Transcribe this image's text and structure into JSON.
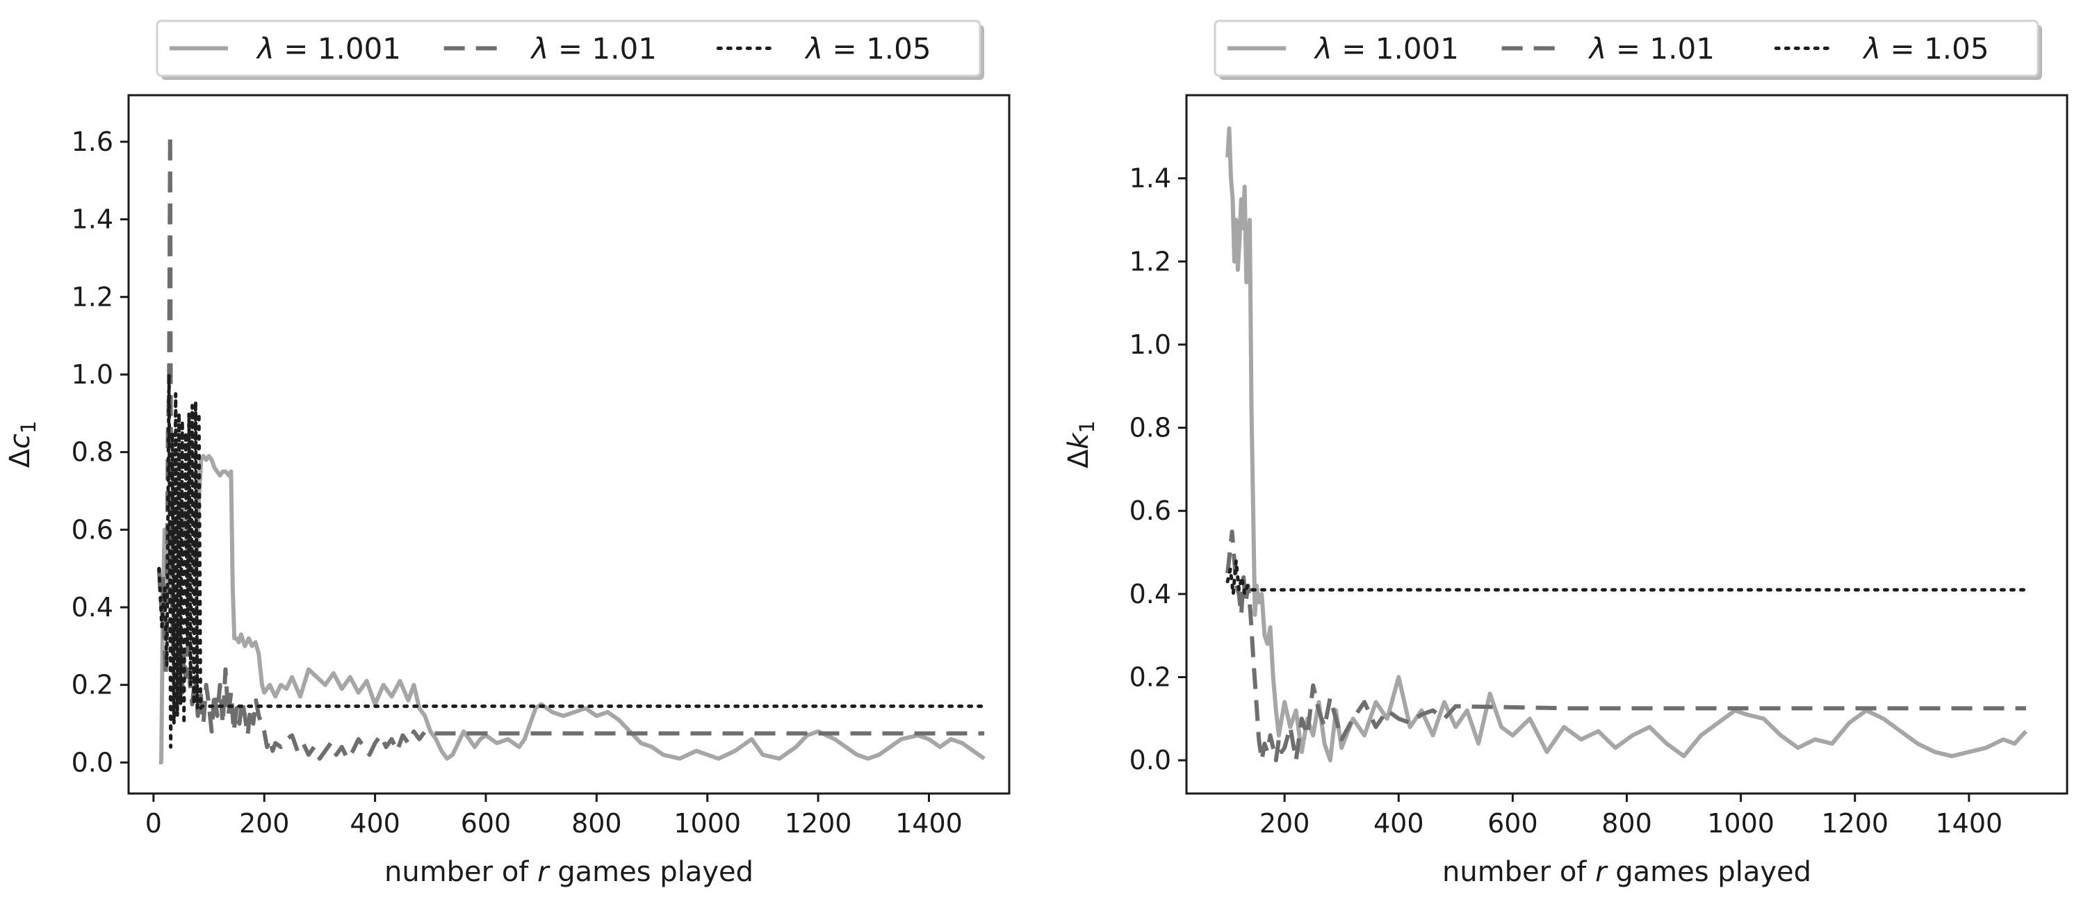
{
  "chart_data": [
    {
      "type": "line",
      "xlabel": "number of r games played",
      "xlabel_parts": {
        "pre": "number of ",
        "ital": "r",
        "post": " games played"
      },
      "ylabel_parts": {
        "delta": "Δ",
        "sym": "c",
        "sub": "1"
      },
      "xlim": [
        -45,
        1545
      ],
      "ylim": [
        -0.08,
        1.72
      ],
      "xticks": [
        0,
        200,
        400,
        600,
        800,
        1000,
        1200,
        1400
      ],
      "yticks": [
        0.0,
        0.2,
        0.4,
        0.6,
        0.8,
        1.0,
        1.2,
        1.4,
        1.6
      ],
      "legend": "top (above plot)",
      "grid": false,
      "series": [
        {
          "name": "λ = 1.001",
          "label_parts": {
            "sym": "λ",
            "val": "= 1.001"
          },
          "style": "solid",
          "color": "#a6a6a6",
          "x": [
            10,
            14,
            17,
            20,
            23,
            27,
            31,
            35,
            40,
            45,
            50,
            55,
            60,
            63,
            66,
            70,
            74,
            78,
            82,
            86,
            90,
            95,
            100,
            105,
            110,
            115,
            120,
            125,
            130,
            136,
            140,
            143,
            146,
            150,
            154,
            158,
            165,
            172,
            178,
            184,
            190,
            196,
            200,
            210,
            220,
            230,
            240,
            250,
            265,
            280,
            295,
            310,
            325,
            340,
            355,
            370,
            385,
            400,
            415,
            430,
            445,
            460,
            470,
            480,
            490,
            500,
            510,
            520,
            530,
            540,
            550,
            560,
            570,
            580,
            590,
            600,
            620,
            640,
            660,
            670,
            680,
            690,
            700,
            720,
            740,
            760,
            780,
            800,
            820,
            840,
            860,
            880,
            900,
            920,
            950,
            980,
            1000,
            1020,
            1050,
            1080,
            1100,
            1130,
            1160,
            1180,
            1200,
            1230,
            1250,
            1270,
            1290,
            1310,
            1330,
            1350,
            1380,
            1400,
            1420,
            1440,
            1460,
            1480,
            1500
          ],
          "y": [
            0.0,
            0.0,
            0.4,
            0.6,
            0.55,
            0.45,
            0.62,
            0.58,
            0.55,
            0.65,
            0.6,
            0.66,
            0.55,
            0.52,
            0.58,
            0.55,
            0.5,
            0.52,
            0.68,
            0.78,
            0.79,
            0.78,
            0.79,
            0.78,
            0.76,
            0.75,
            0.74,
            0.75,
            0.75,
            0.74,
            0.75,
            0.45,
            0.32,
            0.32,
            0.31,
            0.33,
            0.3,
            0.32,
            0.3,
            0.31,
            0.28,
            0.2,
            0.18,
            0.2,
            0.17,
            0.2,
            0.19,
            0.22,
            0.17,
            0.24,
            0.22,
            0.2,
            0.23,
            0.19,
            0.22,
            0.18,
            0.21,
            0.15,
            0.2,
            0.17,
            0.21,
            0.16,
            0.2,
            0.14,
            0.12,
            0.08,
            0.06,
            0.03,
            0.01,
            0.02,
            0.05,
            0.08,
            0.06,
            0.04,
            0.06,
            0.07,
            0.05,
            0.06,
            0.04,
            0.06,
            0.1,
            0.14,
            0.15,
            0.13,
            0.12,
            0.13,
            0.14,
            0.12,
            0.13,
            0.11,
            0.08,
            0.05,
            0.04,
            0.02,
            0.01,
            0.03,
            0.02,
            0.01,
            0.03,
            0.06,
            0.02,
            0.01,
            0.04,
            0.07,
            0.08,
            0.06,
            0.04,
            0.02,
            0.01,
            0.02,
            0.04,
            0.06,
            0.07,
            0.06,
            0.04,
            0.06,
            0.05,
            0.03,
            0.01
          ]
        },
        {
          "name": "λ = 1.01",
          "label_parts": {
            "sym": "λ",
            "val": "= 1.01"
          },
          "style": "dashed",
          "color": "#6e6e6e",
          "x": [
            10,
            13,
            16,
            18,
            20,
            22,
            24,
            26,
            28,
            30,
            31,
            33,
            35,
            37,
            40,
            43,
            46,
            49,
            52,
            55,
            58,
            62,
            66,
            70,
            75,
            80,
            85,
            90,
            95,
            100,
            105,
            110,
            115,
            120,
            125,
            130,
            135,
            140,
            145,
            150,
            155,
            160,
            165,
            170,
            175,
            180,
            185,
            190,
            195,
            200,
            205,
            210,
            215,
            220,
            230,
            240,
            250,
            260,
            270,
            280,
            290,
            300,
            310,
            320,
            330,
            340,
            350,
            360,
            370,
            380,
            390,
            400,
            410,
            420,
            430,
            440,
            450,
            460,
            470,
            480,
            490,
            500,
            700,
            900,
            1100,
            1300,
            1500
          ],
          "y": [
            0.5,
            0.42,
            0.38,
            0.48,
            0.3,
            0.22,
            0.35,
            0.85,
            0.95,
            1.62,
            0.9,
            0.5,
            0.28,
            0.36,
            0.3,
            0.38,
            0.25,
            0.3,
            0.18,
            0.28,
            0.22,
            0.3,
            0.2,
            0.15,
            0.22,
            0.12,
            0.18,
            0.1,
            0.2,
            0.15,
            0.08,
            0.18,
            0.12,
            0.2,
            0.1,
            0.24,
            0.12,
            0.18,
            0.08,
            0.14,
            0.1,
            0.16,
            0.12,
            0.07,
            0.14,
            0.1,
            0.16,
            0.12,
            0.1,
            0.08,
            0.04,
            0.06,
            0.03,
            0.05,
            0.04,
            0.06,
            0.07,
            0.03,
            0.05,
            0.02,
            0.04,
            0.01,
            0.03,
            0.05,
            0.02,
            0.04,
            0.01,
            0.03,
            0.06,
            0.04,
            0.02,
            0.05,
            0.07,
            0.04,
            0.06,
            0.03,
            0.07,
            0.05,
            0.08,
            0.06,
            0.08,
            0.075,
            0.075,
            0.075,
            0.075,
            0.075,
            0.075
          ]
        },
        {
          "name": "λ = 1.05",
          "label_parts": {
            "sym": "λ",
            "val": "= 1.05"
          },
          "style": "dotted",
          "color": "#1e1e1e",
          "x": [
            10,
            15,
            20,
            24,
            28,
            31,
            34,
            37,
            40,
            43,
            46,
            49,
            52,
            55,
            58,
            61,
            64,
            67,
            70,
            73,
            76,
            79,
            82,
            85,
            88,
            200,
            400,
            600,
            800,
            1000,
            1200,
            1400,
            1500
          ],
          "y": [
            0.5,
            0.35,
            0.45,
            0.25,
            1.0,
            0.04,
            0.85,
            0.1,
            0.95,
            0.12,
            0.9,
            0.15,
            0.88,
            0.1,
            0.85,
            0.3,
            0.9,
            0.2,
            0.92,
            0.15,
            0.93,
            0.14,
            0.9,
            0.14,
            0.145,
            0.145,
            0.145,
            0.145,
            0.145,
            0.145,
            0.145,
            0.145,
            0.145
          ]
        }
      ]
    },
    {
      "type": "line",
      "xlabel": "number of r games played",
      "xlabel_parts": {
        "pre": "number of ",
        "ital": "r",
        "post": " games played"
      },
      "ylabel_parts": {
        "delta": "Δ",
        "sym": "k",
        "sub": "1"
      },
      "xlim": [
        28,
        1572
      ],
      "ylim": [
        -0.08,
        1.6
      ],
      "xticks": [
        200,
        400,
        600,
        800,
        1000,
        1200,
        1400
      ],
      "yticks": [
        0.0,
        0.2,
        0.4,
        0.6,
        0.8,
        1.0,
        1.2,
        1.4
      ],
      "legend": "top (above plot)",
      "grid": false,
      "series": [
        {
          "name": "λ = 1.001",
          "label_parts": {
            "sym": "λ",
            "val": "= 1.001"
          },
          "style": "solid",
          "color": "#a6a6a6",
          "x": [
            100,
            103,
            106,
            109,
            112,
            115,
            118,
            121,
            124,
            127,
            130,
            133,
            136,
            139,
            142,
            145,
            148,
            151,
            155,
            160,
            165,
            170,
            175,
            180,
            185,
            190,
            195,
            200,
            210,
            220,
            230,
            240,
            250,
            260,
            270,
            280,
            290,
            300,
            320,
            340,
            360,
            380,
            400,
            420,
            440,
            460,
            480,
            500,
            520,
            540,
            560,
            580,
            600,
            630,
            660,
            690,
            720,
            750,
            780,
            810,
            840,
            870,
            900,
            930,
            960,
            990,
            1010,
            1040,
            1070,
            1100,
            1130,
            1160,
            1190,
            1220,
            1250,
            1280,
            1310,
            1340,
            1370,
            1400,
            1430,
            1460,
            1480,
            1500
          ],
          "y": [
            1.45,
            1.52,
            1.4,
            1.35,
            1.2,
            1.3,
            1.18,
            1.25,
            1.35,
            1.28,
            1.38,
            1.15,
            1.25,
            1.3,
            0.85,
            0.6,
            0.35,
            0.42,
            0.38,
            0.4,
            0.3,
            0.28,
            0.32,
            0.2,
            0.12,
            0.06,
            0.1,
            0.14,
            0.08,
            0.12,
            0.02,
            0.1,
            0.06,
            0.14,
            0.04,
            0.0,
            0.12,
            0.03,
            0.1,
            0.06,
            0.14,
            0.1,
            0.2,
            0.08,
            0.12,
            0.06,
            0.14,
            0.08,
            0.12,
            0.04,
            0.16,
            0.08,
            0.06,
            0.1,
            0.02,
            0.08,
            0.05,
            0.07,
            0.03,
            0.06,
            0.08,
            0.04,
            0.01,
            0.06,
            0.09,
            0.12,
            0.11,
            0.1,
            0.06,
            0.03,
            0.05,
            0.04,
            0.09,
            0.12,
            0.1,
            0.07,
            0.04,
            0.02,
            0.01,
            0.02,
            0.03,
            0.05,
            0.04,
            0.07
          ]
        },
        {
          "name": "λ = 1.01",
          "label_parts": {
            "sym": "λ",
            "val": "= 1.01"
          },
          "style": "dashed",
          "color": "#6e6e6e",
          "x": [
            100,
            104,
            108,
            112,
            116,
            120,
            124,
            128,
            132,
            136,
            140,
            145,
            150,
            155,
            160,
            165,
            170,
            175,
            180,
            185,
            190,
            195,
            200,
            210,
            220,
            230,
            240,
            250,
            260,
            270,
            280,
            290,
            300,
            320,
            340,
            360,
            380,
            400,
            420,
            440,
            460,
            480,
            500,
            700,
            900,
            1100,
            1300,
            1500
          ],
          "y": [
            0.45,
            0.5,
            0.55,
            0.48,
            0.42,
            0.4,
            0.35,
            0.44,
            0.38,
            0.42,
            0.36,
            0.25,
            0.15,
            0.05,
            0.0,
            0.04,
            0.02,
            0.06,
            0.03,
            0.0,
            0.05,
            0.02,
            0.03,
            0.08,
            0.0,
            0.1,
            0.06,
            0.18,
            0.12,
            0.08,
            0.15,
            0.1,
            0.05,
            0.1,
            0.14,
            0.08,
            0.12,
            0.1,
            0.09,
            0.11,
            0.12,
            0.1,
            0.13,
            0.125,
            0.125,
            0.125,
            0.125,
            0.125
          ]
        },
        {
          "name": "λ = 1.05",
          "label_parts": {
            "sym": "λ",
            "val": "= 1.05"
          },
          "style": "dotted",
          "color": "#1e1e1e",
          "x": [
            100,
            105,
            110,
            115,
            120,
            125,
            130,
            135,
            140,
            150,
            400,
            800,
            1200,
            1500
          ],
          "y": [
            0.43,
            0.46,
            0.4,
            0.48,
            0.41,
            0.44,
            0.4,
            0.42,
            0.41,
            0.41,
            0.41,
            0.41,
            0.41,
            0.41
          ]
        }
      ]
    }
  ]
}
